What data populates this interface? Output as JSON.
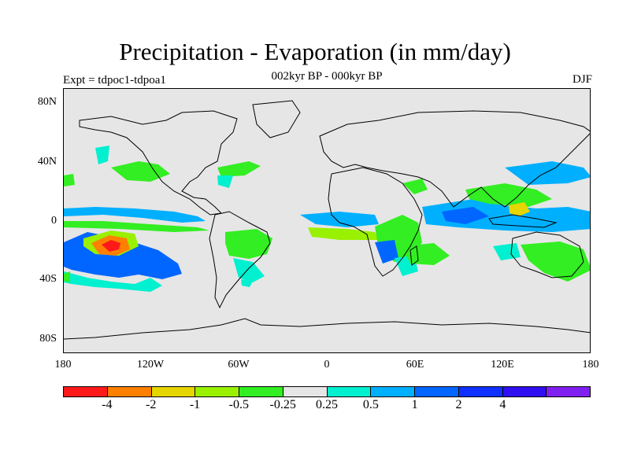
{
  "title": "Precipitation - Evaporation (in mm/day)",
  "subtitle": "002kyr BP - 000kyr BP",
  "left_label": "Expt = tdpoc1-tdpoa1",
  "right_label": "DJF",
  "y_ticks": [
    "80N",
    "40N",
    "0",
    "40S",
    "80S"
  ],
  "x_ticks": [
    "180",
    "120W",
    "60W",
    "0",
    "60E",
    "120E",
    "180"
  ],
  "colorbar": {
    "colors": [
      "#ff1a1a",
      "#ff8000",
      "#e6d600",
      "#99f000",
      "#33ee22",
      "#e6e6e6",
      "#00f0d0",
      "#00b0ff",
      "#0066ff",
      "#1030ff",
      "#3010f0",
      "#8020f0"
    ],
    "labels": [
      "-4",
      "-2",
      "-1",
      "-0.5",
      "-0.25",
      "0.25",
      "0.5",
      "1",
      "2",
      "4"
    ]
  },
  "colors": {
    "ocean_land_background": "#e6e6e6",
    "coastline": "#000000"
  }
}
